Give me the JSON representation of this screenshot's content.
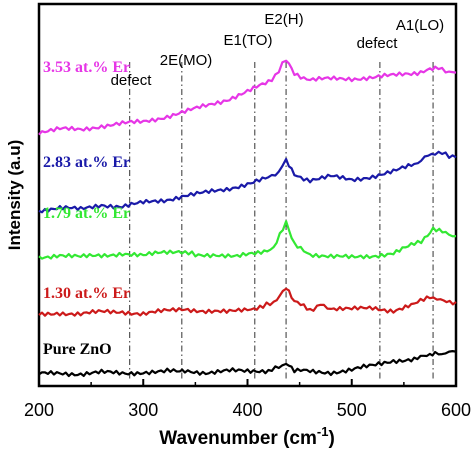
{
  "chart_data": {
    "type": "line",
    "xlabel_main": "Wavenumber (cm",
    "xlabel_sup": "-1",
    "xlabel_close": ")",
    "ylabel": "Intensity (a.u)",
    "xlim": [
      200,
      600
    ],
    "x_ticks": [
      200,
      300,
      400,
      500,
      600
    ],
    "y_ticks": false,
    "grid": false,
    "annotations": [
      {
        "text": "2E(MO)",
        "x": 337
      },
      {
        "text": "E1(TO)",
        "x": 407
      },
      {
        "text": "E2(H)",
        "x": 437
      },
      {
        "text": "defect",
        "x": 287
      },
      {
        "text": "defect",
        "x": 527
      },
      {
        "text": "A1(LO)",
        "x": 578
      }
    ],
    "reference_lines_x": [
      287,
      337,
      407,
      437,
      527,
      578
    ],
    "series": [
      {
        "name": "Pure ZnO",
        "color": "#000000",
        "x": [
          200,
          220,
          240,
          260,
          280,
          300,
          320,
          335,
          340,
          360,
          380,
          400,
          420,
          430,
          437,
          445,
          460,
          480,
          500,
          520,
          540,
          560,
          575,
          580,
          590,
          600
        ],
        "y": [
          1.0,
          1.6,
          1.2,
          1.9,
          1.4,
          2.1,
          2.3,
          3.0,
          2.6,
          2.0,
          2.8,
          2.4,
          3.1,
          4.5,
          7.2,
          3.3,
          2.3,
          2.0,
          3.4,
          5.5,
          8.4,
          9.1,
          11.2,
          12.0,
          12.4,
          13.2
        ]
      },
      {
        "name": "1.30 at.% Er",
        "color": "#cc1a1a",
        "x": [
          200,
          220,
          240,
          260,
          280,
          300,
          320,
          340,
          360,
          380,
          400,
          415,
          425,
          437,
          445,
          460,
          470,
          480,
          500,
          520,
          540,
          560,
          575,
          585,
          600
        ],
        "y": [
          33.0,
          34.2,
          33.5,
          34.6,
          34.8,
          33.6,
          35.0,
          36.4,
          35.0,
          34.4,
          36.2,
          37.5,
          40.0,
          47.4,
          40.2,
          35.6,
          38.4,
          36.6,
          36.0,
          36.8,
          35.4,
          38.6,
          43.2,
          40.6,
          40.0
        ]
      },
      {
        "name": "1.79 at.% Er",
        "color": "#33e833",
        "x": [
          200,
          220,
          240,
          260,
          280,
          300,
          320,
          337,
          350,
          370,
          390,
          410,
          425,
          437,
          445,
          460,
          480,
          500,
          520,
          540,
          560,
          570,
          578,
          590,
          600
        ],
        "y": [
          64.0,
          65.6,
          64.3,
          65.0,
          66.4,
          65.0,
          66.8,
          67.6,
          65.2,
          65.8,
          64.6,
          66.2,
          69.6,
          82.4,
          70.6,
          66.0,
          64.6,
          64.0,
          65.0,
          66.4,
          71.2,
          74.4,
          79.8,
          77.0,
          75.6
        ]
      },
      {
        "name": "2.83 at.% Er",
        "color": "#1a1aa8",
        "x": [
          200,
          220,
          240,
          260,
          280,
          300,
          320,
          340,
          360,
          380,
          400,
          420,
          430,
          437,
          445,
          460,
          480,
          500,
          520,
          540,
          560,
          570,
          580,
          590,
          600
        ],
        "y": [
          89.6,
          91.0,
          90.0,
          92.6,
          91.6,
          93.6,
          95.0,
          97.6,
          99.0,
          101.0,
          104.0,
          107.0,
          110.4,
          116.6,
          108.4,
          106.0,
          107.8,
          106.0,
          108.0,
          110.4,
          114.4,
          118.0,
          120.8,
          119.8,
          118.2
        ]
      },
      {
        "name": "3.53 at.% Er",
        "color": "#e636e6",
        "x": [
          200,
          220,
          240,
          260,
          280,
          300,
          320,
          340,
          360,
          380,
          400,
          420,
          430,
          437,
          445,
          460,
          480,
          500,
          520,
          540,
          560,
          575,
          580,
          590,
          600
        ],
        "y": [
          131.8,
          133.4,
          133.2,
          135.2,
          136.4,
          137.4,
          140.0,
          142.8,
          146.0,
          149.4,
          153.8,
          158.6,
          164.8,
          171.6,
          163.6,
          160.0,
          160.6,
          160.8,
          161.4,
          162.4,
          163.8,
          165.6,
          166.6,
          165.0,
          164.0
        ]
      }
    ]
  }
}
